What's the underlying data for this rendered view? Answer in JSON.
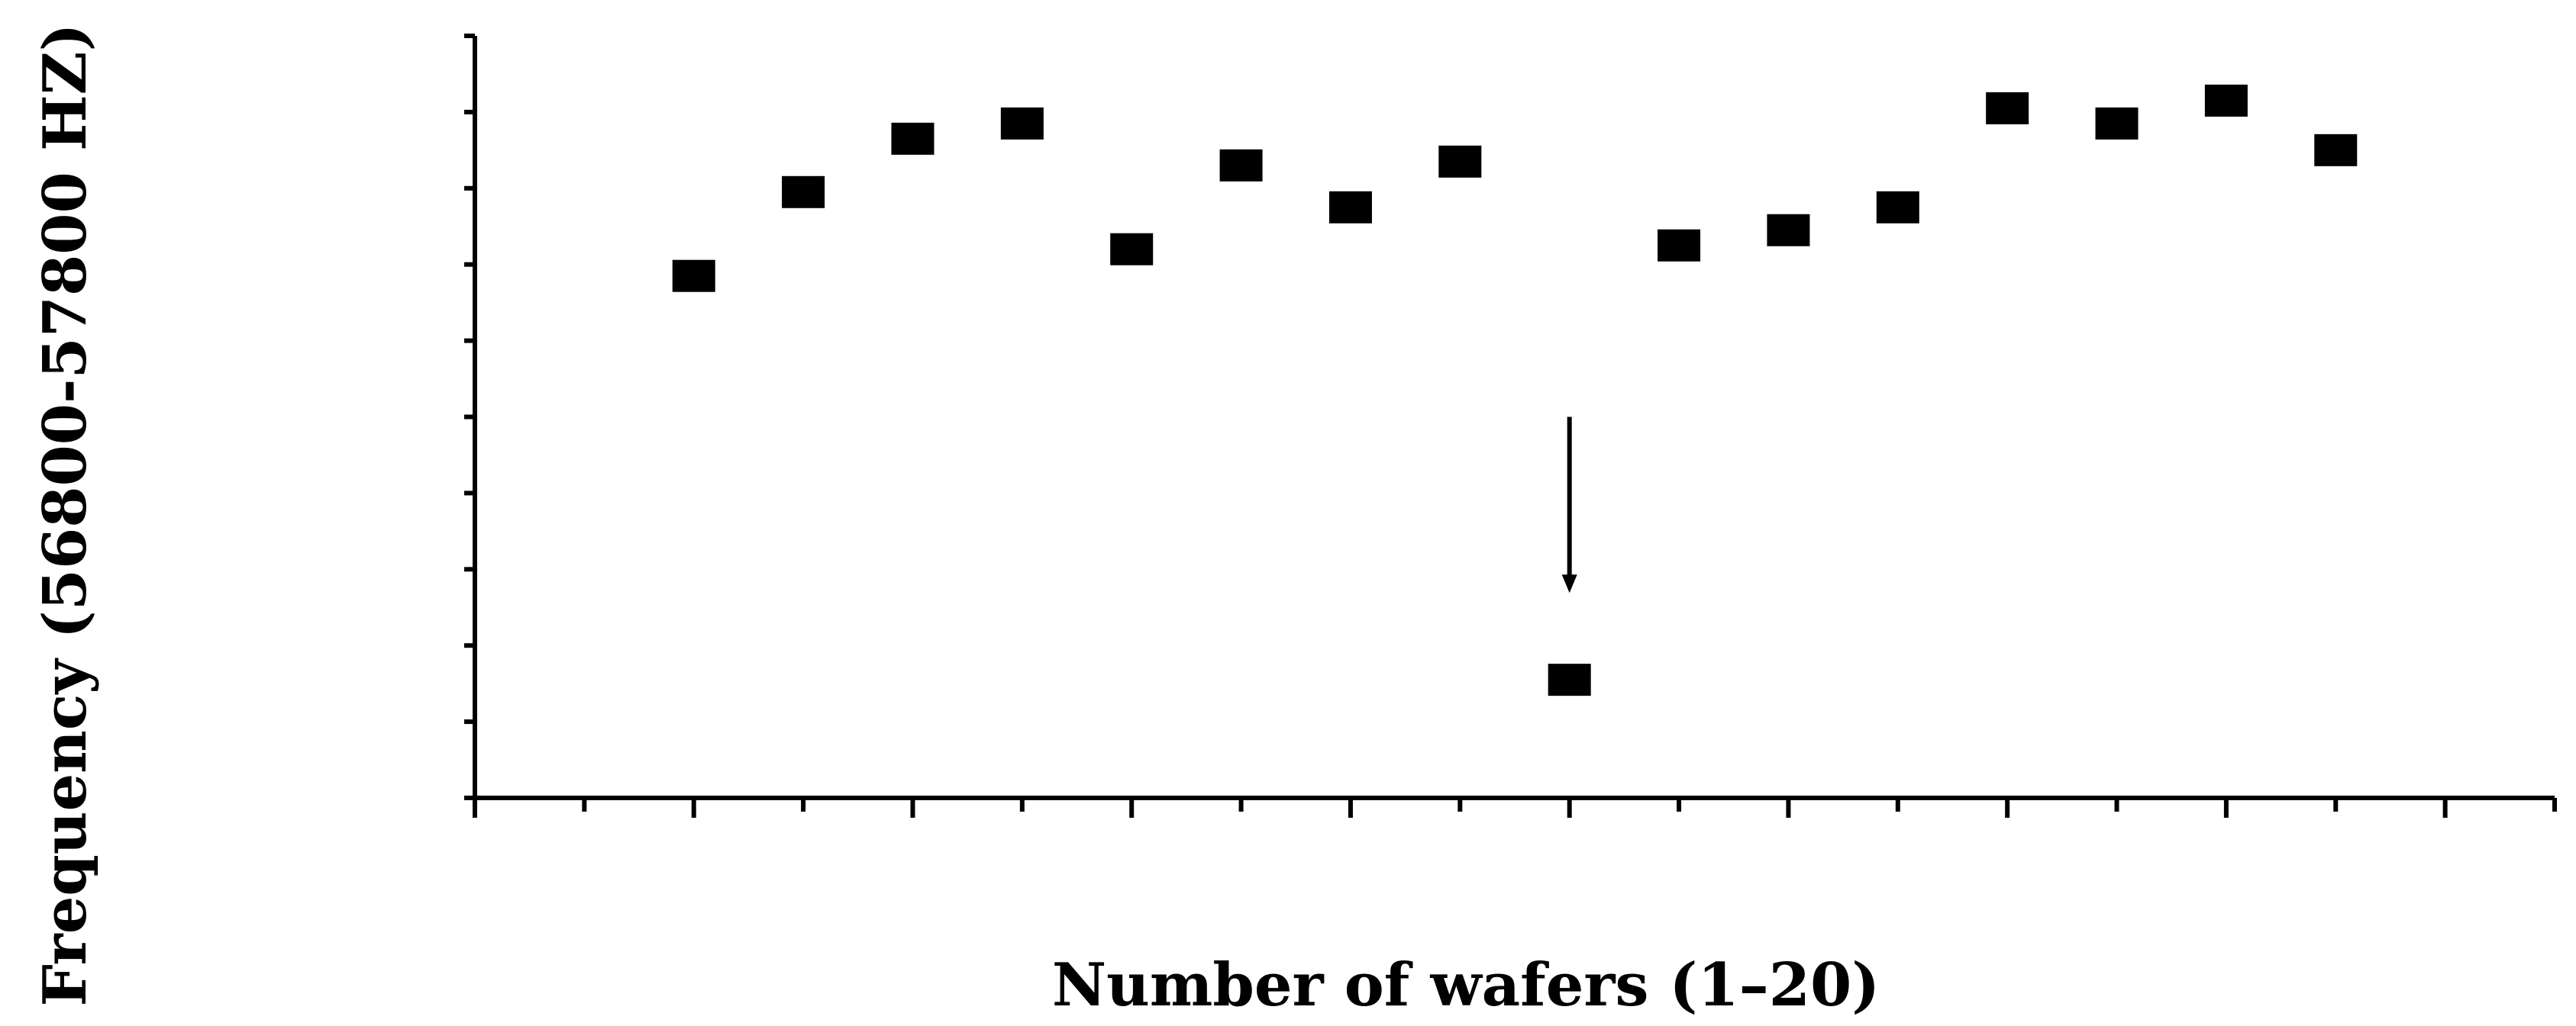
{
  "chart_data": {
    "type": "scatter",
    "xlabel": "Number of wafers (1–20)",
    "ylabel": "Frequency (56800-57800 HZ)",
    "xlim": [
      0,
      19
    ],
    "ylim": [
      56800,
      57800
    ],
    "x_ticks": [
      0,
      1,
      2,
      3,
      4,
      5,
      6,
      7,
      8,
      9,
      10,
      11,
      12,
      13,
      14,
      15,
      16,
      17,
      18,
      19
    ],
    "y_ticks": [
      56800,
      56900,
      57000,
      57100,
      57200,
      57300,
      57400,
      57500,
      57600,
      57700,
      57800
    ],
    "grid": false,
    "marker": "square",
    "marker_color": "#000000",
    "x": [
      2,
      3,
      4,
      5,
      6,
      7,
      8,
      9,
      10,
      11,
      12,
      13,
      14,
      15,
      16,
      17
    ],
    "y": [
      57485,
      57595,
      57665,
      57685,
      57520,
      57630,
      57575,
      57635,
      56955,
      57525,
      57545,
      57575,
      57705,
      57685,
      57715,
      57650
    ],
    "annotations": [
      {
        "type": "arrow",
        "x": 10,
        "y_from": 57300,
        "y_to": 57075
      }
    ]
  }
}
